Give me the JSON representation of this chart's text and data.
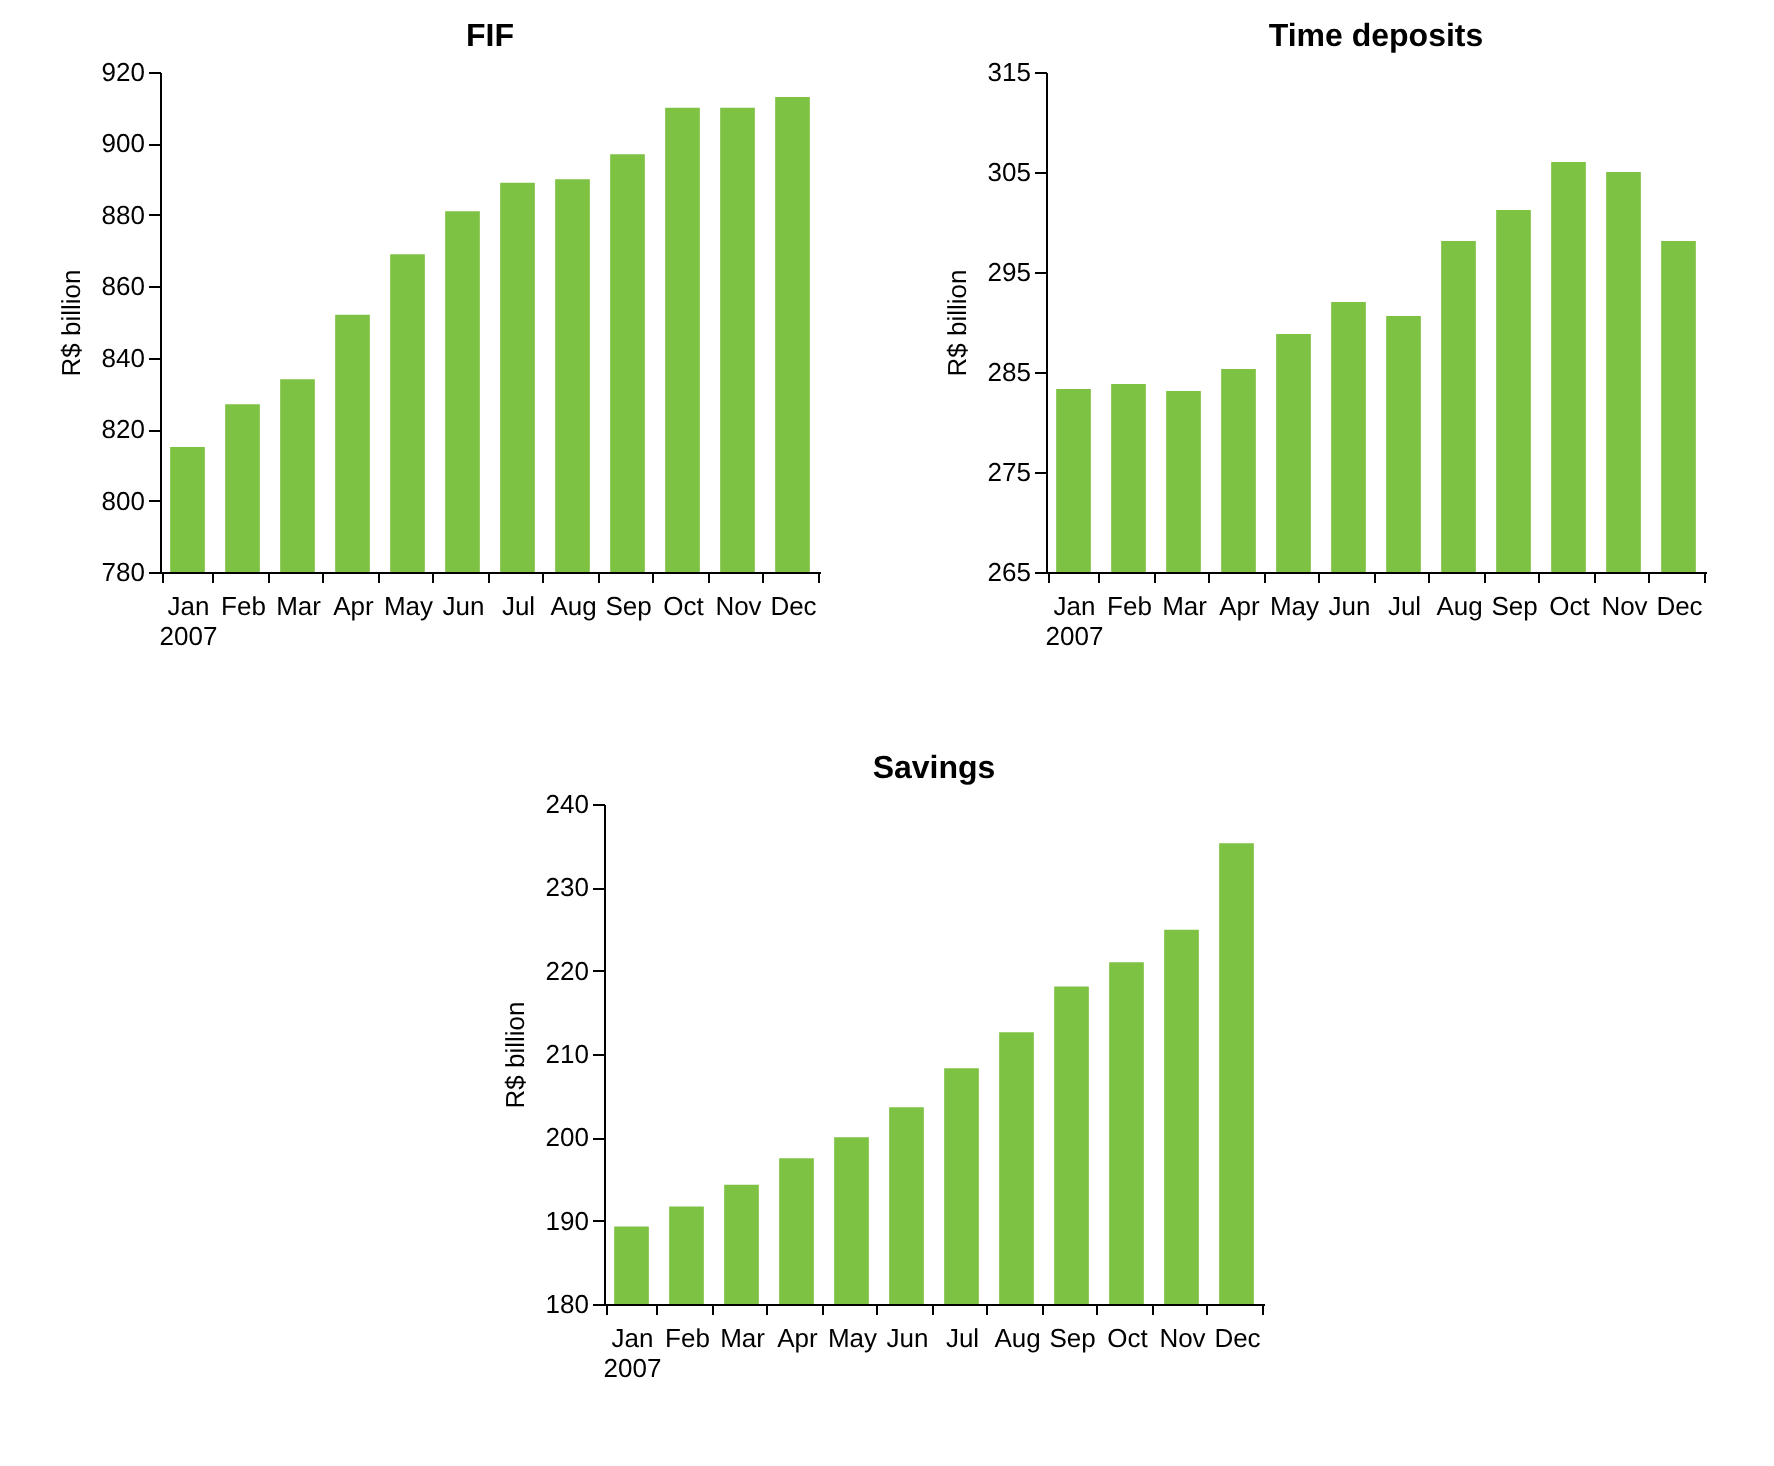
{
  "chart_data": [
    {
      "type": "bar",
      "title": "FIF",
      "ylabel": "R$ billion",
      "categories": [
        "Jan\n2007",
        "Feb",
        "Mar",
        "Apr",
        "May",
        "Jun",
        "Jul",
        "Aug",
        "Sep",
        "Oct",
        "Nov",
        "Dec"
      ],
      "values": [
        815,
        827,
        834,
        852,
        869,
        881,
        889,
        890,
        897,
        910,
        910,
        913
      ],
      "color": "#7dc242",
      "ylim": [
        780,
        920
      ],
      "yticks": [
        780,
        800,
        820,
        840,
        860,
        880,
        900,
        920
      ]
    },
    {
      "type": "bar",
      "title": "Time deposits",
      "ylabel": "R$ billion",
      "categories": [
        "Jan\n2007",
        "Feb",
        "Mar",
        "Apr",
        "May",
        "Jun",
        "Jul",
        "Aug",
        "Sep",
        "Oct",
        "Nov",
        "Dec"
      ],
      "values": [
        283.3,
        283.8,
        283.1,
        285.3,
        288.8,
        292,
        290.6,
        298.1,
        301.2,
        306,
        305,
        298.1
      ],
      "color": "#7dc242",
      "ylim": [
        265,
        315
      ],
      "yticks": [
        265,
        275,
        285,
        295,
        305,
        315
      ]
    },
    {
      "type": "bar",
      "title": "Savings",
      "ylabel": "R$ billion",
      "categories": [
        "Jan\n2007",
        "Feb",
        "Mar",
        "Apr",
        "May",
        "Jun",
        "Jul",
        "Aug",
        "Sep",
        "Oct",
        "Nov",
        "Dec"
      ],
      "values": [
        189.3,
        191.7,
        194.3,
        197.5,
        200,
        203.6,
        208.3,
        212.6,
        218.1,
        221,
        224.9,
        235.3
      ],
      "color": "#7dc242",
      "ylim": [
        180,
        240
      ],
      "yticks": [
        180,
        190,
        200,
        210,
        220,
        230,
        240
      ]
    }
  ]
}
